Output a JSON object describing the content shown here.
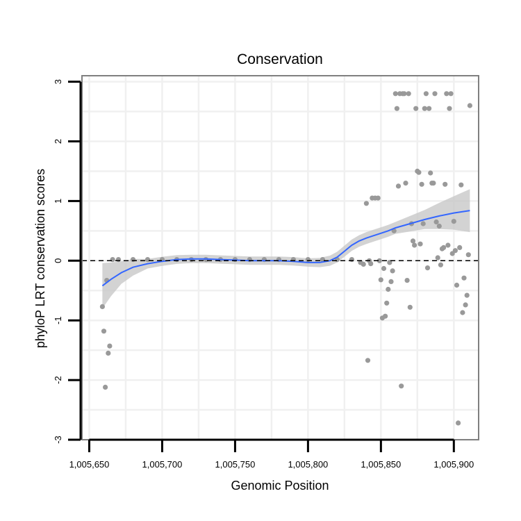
{
  "chart_data": {
    "type": "scatter",
    "title": "Conservation",
    "xlabel": "Genomic Position",
    "ylabel": "phyloP LRT conservation scores",
    "xlim": [
      1005645,
      1005917
    ],
    "ylim": [
      -3,
      3.1
    ],
    "x_ticks": [
      1005650,
      1005700,
      1005750,
      1005800,
      1005850,
      1005900
    ],
    "x_tick_labels": [
      "1,005,650",
      "1,005,700",
      "1,005,750",
      "1,005,800",
      "1,005,850",
      "1,005,900"
    ],
    "y_ticks": [
      -3,
      -2,
      -1,
      0,
      1,
      2,
      3
    ],
    "y_tick_labels": [
      "-3",
      "-2",
      "-1",
      "0",
      "1",
      "2",
      "3"
    ],
    "reference_line": {
      "y": 0,
      "style": "dashed"
    },
    "colors": {
      "points": "#999999",
      "smooth_line": "#3366ff",
      "ribbon": "#c8c8c8",
      "panel_border": "#7f7f7f",
      "grid": "#f0f0f0"
    },
    "points": [
      [
        1005659,
        -0.77
      ],
      [
        1005660,
        -1.18
      ],
      [
        1005661,
        -2.12
      ],
      [
        1005662,
        -0.33
      ],
      [
        1005663,
        -1.55
      ],
      [
        1005664,
        -1.43
      ],
      [
        1005666,
        0.02
      ],
      [
        1005670,
        0.02
      ],
      [
        1005680,
        0.02
      ],
      [
        1005690,
        0.02
      ],
      [
        1005700,
        0.02
      ],
      [
        1005710,
        0.02
      ],
      [
        1005720,
        0.02
      ],
      [
        1005730,
        0.02
      ],
      [
        1005740,
        0.02
      ],
      [
        1005750,
        0.02
      ],
      [
        1005760,
        0.02
      ],
      [
        1005770,
        0.02
      ],
      [
        1005780,
        0.02
      ],
      [
        1005790,
        0.02
      ],
      [
        1005800,
        0.02
      ],
      [
        1005810,
        0.02
      ],
      [
        1005820,
        0.02
      ],
      [
        1005830,
        0.02
      ],
      [
        1005836,
        -0.03
      ],
      [
        1005838,
        -0.06
      ],
      [
        1005840,
        0.96
      ],
      [
        1005841,
        -1.67
      ],
      [
        1005842,
        0.0
      ],
      [
        1005843,
        -0.05
      ],
      [
        1005844,
        1.05
      ],
      [
        1005846,
        1.05
      ],
      [
        1005848,
        1.05
      ],
      [
        1005849,
        0.0
      ],
      [
        1005850,
        -0.32
      ],
      [
        1005851,
        -0.96
      ],
      [
        1005852,
        -0.13
      ],
      [
        1005853,
        -0.93
      ],
      [
        1005854,
        -0.71
      ],
      [
        1005855,
        -0.48
      ],
      [
        1005856,
        -0.03
      ],
      [
        1005857,
        -0.35
      ],
      [
        1005858,
        -0.17
      ],
      [
        1005859,
        0.5
      ],
      [
        1005860,
        2.8
      ],
      [
        1005861,
        2.55
      ],
      [
        1005862,
        1.25
      ],
      [
        1005863,
        2.8
      ],
      [
        1005864,
        -2.1
      ],
      [
        1005865,
        2.8
      ],
      [
        1005866,
        2.8
      ],
      [
        1005867,
        1.3
      ],
      [
        1005868,
        -0.33
      ],
      [
        1005869,
        2.8
      ],
      [
        1005870,
        -0.78
      ],
      [
        1005871,
        0.62
      ],
      [
        1005872,
        0.33
      ],
      [
        1005873,
        0.26
      ],
      [
        1005874,
        2.55
      ],
      [
        1005875,
        1.5
      ],
      [
        1005876,
        1.48
      ],
      [
        1005877,
        0.28
      ],
      [
        1005878,
        1.28
      ],
      [
        1005879,
        0.62
      ],
      [
        1005880,
        2.55
      ],
      [
        1005881,
        2.8
      ],
      [
        1005882,
        -0.12
      ],
      [
        1005883,
        2.55
      ],
      [
        1005884,
        1.47
      ],
      [
        1005885,
        1.3
      ],
      [
        1005886,
        1.3
      ],
      [
        1005887,
        2.8
      ],
      [
        1005888,
        0.65
      ],
      [
        1005889,
        0.05
      ],
      [
        1005890,
        0.58
      ],
      [
        1005891,
        -0.07
      ],
      [
        1005892,
        0.2
      ],
      [
        1005893,
        0.22
      ],
      [
        1005894,
        1.28
      ],
      [
        1005895,
        2.8
      ],
      [
        1005896,
        0.26
      ],
      [
        1005897,
        2.55
      ],
      [
        1005898,
        2.8
      ],
      [
        1005899,
        0.12
      ],
      [
        1005900,
        0.66
      ],
      [
        1005901,
        0.17
      ],
      [
        1005902,
        -0.41
      ],
      [
        1005903,
        -2.72
      ],
      [
        1005904,
        0.22
      ],
      [
        1005905,
        1.27
      ],
      [
        1005906,
        -0.87
      ],
      [
        1005907,
        -0.29
      ],
      [
        1005908,
        -0.74
      ],
      [
        1005909,
        -0.58
      ],
      [
        1005910,
        0.1
      ],
      [
        1005911,
        2.6
      ]
    ],
    "smooth": [
      [
        1005659,
        -0.42
      ],
      [
        1005665,
        -0.31
      ],
      [
        1005672,
        -0.2
      ],
      [
        1005680,
        -0.11
      ],
      [
        1005690,
        -0.05
      ],
      [
        1005700,
        -0.01
      ],
      [
        1005710,
        0.02
      ],
      [
        1005720,
        0.03
      ],
      [
        1005730,
        0.03
      ],
      [
        1005740,
        0.02
      ],
      [
        1005750,
        0.01
      ],
      [
        1005760,
        0.0
      ],
      [
        1005770,
        0.0
      ],
      [
        1005780,
        0.0
      ],
      [
        1005790,
        -0.01
      ],
      [
        1005800,
        -0.03
      ],
      [
        1005808,
        -0.03
      ],
      [
        1005815,
        0.0
      ],
      [
        1005820,
        0.06
      ],
      [
        1005825,
        0.16
      ],
      [
        1005830,
        0.26
      ],
      [
        1005835,
        0.33
      ],
      [
        1005840,
        0.38
      ],
      [
        1005845,
        0.42
      ],
      [
        1005850,
        0.46
      ],
      [
        1005855,
        0.5
      ],
      [
        1005860,
        0.55
      ],
      [
        1005870,
        0.62
      ],
      [
        1005880,
        0.69
      ],
      [
        1005890,
        0.75
      ],
      [
        1005900,
        0.8
      ],
      [
        1005911,
        0.84
      ]
    ],
    "ribbon_halfwidth": [
      [
        1005659,
        0.38
      ],
      [
        1005670,
        0.2
      ],
      [
        1005690,
        0.08
      ],
      [
        1005720,
        0.07
      ],
      [
        1005760,
        0.07
      ],
      [
        1005800,
        0.07
      ],
      [
        1005820,
        0.09
      ],
      [
        1005840,
        0.1
      ],
      [
        1005860,
        0.1
      ],
      [
        1005880,
        0.16
      ],
      [
        1005900,
        0.28
      ],
      [
        1005911,
        0.36
      ]
    ]
  }
}
